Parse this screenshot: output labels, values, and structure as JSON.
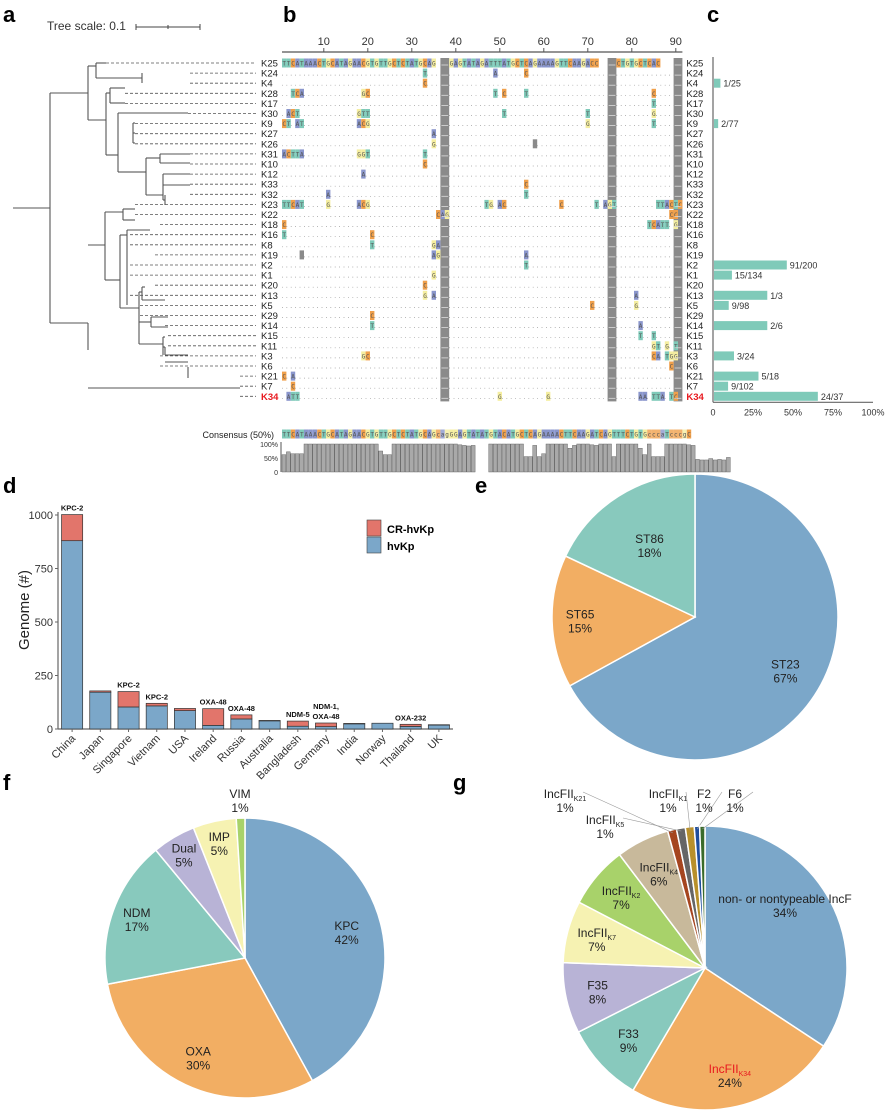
{
  "panels": {
    "a": "a",
    "b": "b",
    "c": "c",
    "d": "d",
    "e": "e",
    "f": "f",
    "g": "g"
  },
  "tree": {
    "scale_label": "Tree scale: 0.1",
    "highlight_color": "#e8191f",
    "leaves": [
      "K25",
      "K24",
      "K4",
      "K28",
      "K17",
      "K30",
      "K9",
      "K27",
      "K26",
      "K31",
      "K10",
      "K12",
      "K33",
      "K32",
      "K23",
      "K22",
      "K18",
      "K16",
      "K8",
      "K19",
      "K2",
      "K1",
      "K20",
      "K13",
      "K5",
      "K29",
      "K14",
      "K15",
      "K11",
      "K3",
      "K6",
      "K21",
      "K7",
      "K34"
    ],
    "highlight_leaf": "K34"
  },
  "alignment": {
    "axis_ticks": [
      10,
      20,
      30,
      40,
      50,
      60,
      70,
      80,
      90
    ],
    "length": 91,
    "gap_columns": [
      [
        37,
        38
      ],
      [
        75,
        76
      ],
      [
        90,
        91
      ]
    ],
    "consensus_label": "Consensus (50%)",
    "consensus": "TTCATAAACTGCATAGAACGTGTTGCTCTATGCAGcagGGAGTATATGTACATGCTCAGAAAACTTCAAGATCAGTTTCTGTGcccaTcccgC",
    "reference": "TTCATAAACTGCATAGAACGTGTTGCTCTATGCAG--GGAGTATAGATTTATGCTCAGAAAAGTTCAAGACC--TTCTGTGCTCAC--",
    "identity_ticks": [
      "100%",
      "50%",
      "0"
    ],
    "base_colors": {
      "A": "#8a96cc",
      "C": "#f0a04b",
      "G": "#f5eea0",
      "T": "#7fcab9",
      "gap": "#8a8a8a"
    },
    "mutations": [
      {
        "row": 1,
        "muts": [
          [
            33,
            "T"
          ],
          [
            49,
            "A"
          ],
          [
            56,
            "C"
          ]
        ]
      },
      {
        "row": 2,
        "muts": [
          [
            33,
            "C"
          ]
        ]
      },
      {
        "row": 3,
        "muts": [
          [
            3,
            "T"
          ],
          [
            4,
            "C"
          ],
          [
            5,
            "A"
          ],
          [
            19,
            "G"
          ],
          [
            20,
            "C"
          ],
          [
            49,
            "T"
          ],
          [
            51,
            "C"
          ],
          [
            56,
            "T"
          ],
          [
            85,
            "C"
          ]
        ]
      },
      {
        "row": 4,
        "muts": [
          [
            85,
            "T"
          ]
        ]
      },
      {
        "row": 5,
        "muts": [
          [
            2,
            "A"
          ],
          [
            3,
            "C"
          ],
          [
            4,
            "T"
          ],
          [
            18,
            "G"
          ],
          [
            19,
            "T"
          ],
          [
            20,
            "T"
          ],
          [
            51,
            "T"
          ],
          [
            70,
            "T"
          ],
          [
            85,
            "G"
          ]
        ]
      },
      {
        "row": 6,
        "muts": [
          [
            1,
            "C"
          ],
          [
            2,
            "T"
          ],
          [
            4,
            "A"
          ],
          [
            5,
            "T"
          ],
          [
            18,
            "A"
          ],
          [
            19,
            "C"
          ],
          [
            20,
            "G"
          ],
          [
            70,
            "G"
          ],
          [
            85,
            "T"
          ]
        ]
      },
      {
        "row": 7,
        "muts": [
          [
            35,
            "A"
          ]
        ]
      },
      {
        "row": 8,
        "muts": [
          [
            35,
            "G"
          ],
          [
            58,
            "-"
          ]
        ]
      },
      {
        "row": 9,
        "muts": [
          [
            1,
            "A"
          ],
          [
            2,
            "C"
          ],
          [
            3,
            "T"
          ],
          [
            4,
            "T"
          ],
          [
            5,
            "A"
          ],
          [
            18,
            "G"
          ],
          [
            19,
            "G"
          ],
          [
            20,
            "T"
          ],
          [
            33,
            "T"
          ]
        ]
      },
      {
        "row": 10,
        "muts": [
          [
            33,
            "C"
          ]
        ]
      },
      {
        "row": 11,
        "muts": [
          [
            19,
            "A"
          ]
        ]
      },
      {
        "row": 12,
        "muts": [
          [
            56,
            "C"
          ]
        ]
      },
      {
        "row": 13,
        "muts": [
          [
            11,
            "A"
          ],
          [
            56,
            "T"
          ]
        ]
      },
      {
        "row": 14,
        "muts": [
          [
            1,
            "T"
          ],
          [
            2,
            "T"
          ],
          [
            3,
            "C"
          ],
          [
            4,
            "A"
          ],
          [
            5,
            "T"
          ],
          [
            11,
            "G"
          ],
          [
            18,
            "A"
          ],
          [
            19,
            "C"
          ],
          [
            20,
            "G"
          ],
          [
            47,
            "T"
          ],
          [
            48,
            "G"
          ],
          [
            50,
            "A"
          ],
          [
            51,
            "C"
          ],
          [
            64,
            "C"
          ],
          [
            72,
            "T"
          ],
          [
            74,
            "A"
          ],
          [
            75,
            "G"
          ],
          [
            76,
            "T"
          ],
          [
            86,
            "T"
          ],
          [
            87,
            "T"
          ],
          [
            88,
            "A"
          ],
          [
            89,
            "C"
          ],
          [
            90,
            "T"
          ],
          [
            91,
            "C"
          ]
        ]
      },
      {
        "row": 15,
        "muts": [
          [
            36,
            "C"
          ],
          [
            37,
            "A"
          ],
          [
            38,
            "G"
          ],
          [
            89,
            "C"
          ],
          [
            90,
            "C"
          ]
        ]
      },
      {
        "row": 16,
        "muts": [
          [
            1,
            "C"
          ],
          [
            84,
            "T"
          ],
          [
            85,
            "C"
          ],
          [
            86,
            "A"
          ],
          [
            87,
            "T"
          ],
          [
            88,
            "T"
          ],
          [
            90,
            "G"
          ]
        ]
      },
      {
        "row": 17,
        "muts": [
          [
            1,
            "T"
          ],
          [
            21,
            "C"
          ]
        ]
      },
      {
        "row": 18,
        "muts": [
          [
            21,
            "T"
          ],
          [
            35,
            "G"
          ],
          [
            36,
            "A"
          ]
        ]
      },
      {
        "row": 19,
        "muts": [
          [
            5,
            "-"
          ],
          [
            35,
            "A"
          ],
          [
            36,
            "G"
          ],
          [
            56,
            "A"
          ]
        ]
      },
      {
        "row": 20,
        "muts": [
          [
            56,
            "T"
          ]
        ]
      },
      {
        "row": 21,
        "muts": [
          [
            35,
            "G"
          ]
        ]
      },
      {
        "row": 22,
        "muts": [
          [
            33,
            "C"
          ]
        ]
      },
      {
        "row": 23,
        "muts": [
          [
            33,
            "G"
          ],
          [
            35,
            "A"
          ],
          [
            81,
            "A"
          ]
        ]
      },
      {
        "row": 24,
        "muts": [
          [
            71,
            "C"
          ],
          [
            81,
            "G"
          ]
        ]
      },
      {
        "row": 25,
        "muts": [
          [
            21,
            "C"
          ]
        ]
      },
      {
        "row": 26,
        "muts": [
          [
            21,
            "T"
          ],
          [
            82,
            "A"
          ]
        ]
      },
      {
        "row": 27,
        "muts": [
          [
            82,
            "T"
          ],
          [
            85,
            "T"
          ]
        ]
      },
      {
        "row": 28,
        "muts": [
          [
            85,
            "G"
          ],
          [
            86,
            "T"
          ],
          [
            88,
            "G"
          ],
          [
            90,
            "T"
          ]
        ]
      },
      {
        "row": 29,
        "muts": [
          [
            19,
            "G"
          ],
          [
            20,
            "C"
          ],
          [
            85,
            "C"
          ],
          [
            86,
            "A"
          ],
          [
            88,
            "T"
          ],
          [
            89,
            "G"
          ],
          [
            90,
            "G"
          ]
        ]
      },
      {
        "row": 30,
        "muts": [
          [
            89,
            "C"
          ]
        ]
      },
      {
        "row": 31,
        "muts": [
          [
            1,
            "C"
          ],
          [
            3,
            "A"
          ]
        ]
      },
      {
        "row": 32,
        "muts": [
          [
            3,
            "C"
          ]
        ]
      },
      {
        "row": 33,
        "muts": [
          [
            2,
            "A"
          ],
          [
            3,
            "T"
          ],
          [
            4,
            "T"
          ],
          [
            50,
            "G"
          ],
          [
            61,
            "G"
          ],
          [
            82,
            "A"
          ],
          [
            83,
            "A"
          ],
          [
            85,
            "T"
          ],
          [
            86,
            "T"
          ],
          [
            87,
            "A"
          ],
          [
            89,
            "T"
          ],
          [
            90,
            "C"
          ]
        ]
      }
    ],
    "identity": [
      0.62,
      0.72,
      0.65,
      0.65,
      0.65,
      1,
      1,
      1,
      1,
      1,
      1,
      1,
      1,
      1,
      1,
      1,
      1,
      1,
      1,
      1,
      1,
      1,
      0.75,
      0.62,
      0.62,
      1,
      1,
      1,
      1,
      1,
      1,
      1,
      1,
      1,
      1,
      1,
      1,
      1,
      1,
      1,
      0.97,
      0.95,
      0.93,
      0.95,
      0,
      0,
      0,
      1,
      1,
      1,
      1,
      1,
      1,
      1,
      1,
      0.55,
      0.55,
      0.95,
      0.55,
      0.65,
      1,
      1,
      1,
      1,
      1,
      0.85,
      0.95,
      1,
      1,
      1,
      0.97,
      0.95,
      1,
      1,
      1,
      0.55,
      1,
      1,
      1,
      1,
      1,
      0.85,
      0.62,
      1,
      0.55,
      0.55,
      0.55,
      1,
      1,
      1,
      1,
      1,
      0.97,
      0.95,
      0.45,
      0.43,
      0.43,
      0.48,
      0.43,
      0.45,
      0.43,
      0.52
    ]
  },
  "chart_data": [
    {
      "panel": "c",
      "type": "bar",
      "orientation": "horizontal",
      "categories": [
        "K25",
        "K24",
        "K4",
        "K28",
        "K17",
        "K30",
        "K9",
        "K27",
        "K26",
        "K31",
        "K10",
        "K12",
        "K33",
        "K32",
        "K23",
        "K22",
        "K18",
        "K16",
        "K8",
        "K19",
        "K2",
        "K1",
        "K20",
        "K13",
        "K5",
        "K29",
        "K14",
        "K15",
        "K11",
        "K3",
        "K6",
        "K21",
        "K7",
        "K34"
      ],
      "values": [
        0,
        0,
        4,
        0,
        0,
        0,
        2.6,
        0,
        0,
        0,
        0,
        0,
        0,
        0,
        0,
        0,
        0,
        0,
        0,
        0,
        45.5,
        11.2,
        0,
        33.3,
        9.2,
        0,
        33.3,
        0,
        0,
        12.5,
        0,
        27.8,
        8.8,
        64.9
      ],
      "labels": [
        "",
        "",
        "1/25",
        "",
        "",
        "",
        "2/77",
        "",
        "",
        "",
        "",
        "",
        "",
        "",
        "",
        "",
        "",
        "",
        "",
        "",
        "91/200",
        "15/134",
        "",
        "1/3",
        "9/98",
        "",
        "2/6",
        "",
        "",
        "3/24",
        "",
        "5/18",
        "9/102",
        "24/37"
      ],
      "xticks": [
        "0",
        "25%",
        "50%",
        "75%",
        "100%"
      ],
      "xlim": [
        0,
        100
      ],
      "bar_color": "#7fcab9",
      "highlight_category": "K34"
    },
    {
      "panel": "d",
      "type": "bar",
      "stacked": true,
      "categories": [
        "China",
        "Japan",
        "Singapore",
        "Vietnam",
        "USA",
        "Ireland",
        "Russia",
        "Australia",
        "Bangladesh",
        "Germany",
        "India",
        "Norway",
        "Thailand",
        "UK"
      ],
      "series": [
        {
          "name": "hvKp",
          "color": "#7ba7c9",
          "values": [
            880,
            172,
            103,
            108,
            86,
            17,
            47,
            38,
            13,
            11,
            24,
            27,
            12,
            18
          ]
        },
        {
          "name": "CR-hvKp",
          "color": "#e2756b",
          "values": [
            122,
            6,
            72,
            12,
            10,
            78,
            19,
            2,
            24,
            17,
            2,
            0,
            10,
            2
          ]
        }
      ],
      "annotations": [
        "KPC-2",
        "",
        "KPC-2",
        "KPC-2",
        "",
        "OXA-48",
        "OXA-48",
        "",
        "NDM-5",
        "NDM-1,|OXA-48",
        "",
        "",
        "OXA-232",
        ""
      ],
      "ylabel": "Genome (#)",
      "yticks": [
        0,
        250,
        500,
        750,
        1000
      ],
      "ylim": [
        0,
        1000
      ],
      "legend": [
        "CR-hvKp",
        "hvKp"
      ],
      "legend_position": "top-right"
    },
    {
      "panel": "e",
      "type": "pie",
      "slices": [
        {
          "label": "ST23",
          "pct": "67%",
          "value": 67,
          "color": "#7ba7c9"
        },
        {
          "label": "ST65",
          "pct": "15%",
          "value": 15,
          "color": "#f2ae63"
        },
        {
          "label": "ST86",
          "pct": "18%",
          "value": 18,
          "color": "#88c9bd"
        }
      ]
    },
    {
      "panel": "f",
      "type": "pie",
      "slices": [
        {
          "label": "KPC",
          "pct": "42%",
          "value": 42,
          "color": "#7ba7c9"
        },
        {
          "label": "OXA",
          "pct": "30%",
          "value": 30,
          "color": "#f2ae63"
        },
        {
          "label": "NDM",
          "pct": "17%",
          "value": 17,
          "color": "#88c9bd"
        },
        {
          "label": "Dual",
          "pct": "5%",
          "value": 5,
          "color": "#b8b3d6"
        },
        {
          "label": "IMP",
          "pct": "5%",
          "value": 5,
          "color": "#f6f2b2"
        },
        {
          "label": "VIM",
          "pct": "1%",
          "value": 1,
          "color": "#a8d26a"
        }
      ]
    },
    {
      "panel": "g",
      "type": "pie",
      "slices": [
        {
          "label": "non- or nontypeable IncF",
          "sub": "",
          "pct": "34%",
          "value": 34,
          "color": "#7ba7c9"
        },
        {
          "label": "IncFII",
          "sub": "K34",
          "pct": "24%",
          "value": 24,
          "color": "#f2ae63",
          "label_color": "#e8191f"
        },
        {
          "label": "F33",
          "sub": "",
          "pct": "9%",
          "value": 9,
          "color": "#88c9bd"
        },
        {
          "label": "F35",
          "sub": "",
          "pct": "8%",
          "value": 8,
          "color": "#b8b3d6"
        },
        {
          "label": "IncFII",
          "sub": "K7",
          "pct": "7%",
          "value": 7,
          "color": "#f6f2b2"
        },
        {
          "label": "IncFII",
          "sub": "K2",
          "pct": "7%",
          "value": 7,
          "color": "#a8d26a"
        },
        {
          "label": "IncFII",
          "sub": "K4",
          "pct": "6%",
          "value": 6,
          "color": "#c8b99b"
        },
        {
          "label": "IncFII",
          "sub": "K21",
          "pct": "1%",
          "value": 1,
          "color": "#a5451f"
        },
        {
          "label": "IncFII",
          "sub": "K5",
          "pct": "1%",
          "value": 1,
          "color": "#666666"
        },
        {
          "label": "IncFII",
          "sub": "K1",
          "pct": "1%",
          "value": 1,
          "color": "#b8902a"
        },
        {
          "label": "F2",
          "sub": "",
          "pct": "1%",
          "value": 0.6,
          "color": "#1f4e9c"
        },
        {
          "label": "F6",
          "sub": "",
          "pct": "1%",
          "value": 0.6,
          "color": "#3a6b2a"
        }
      ]
    }
  ]
}
